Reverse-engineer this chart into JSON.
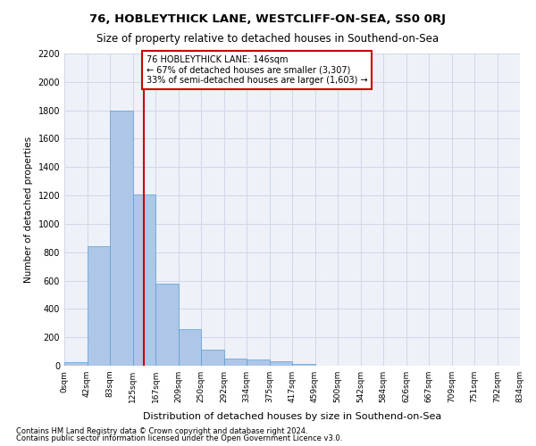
{
  "title_line1": "76, HOBLEYTHICK LANE, WESTCLIFF-ON-SEA, SS0 0RJ",
  "title_line2": "Size of property relative to detached houses in Southend-on-Sea",
  "xlabel": "Distribution of detached houses by size in Southend-on-Sea",
  "ylabel": "Number of detached properties",
  "footnote1": "Contains HM Land Registry data © Crown copyright and database right 2024.",
  "footnote2": "Contains public sector information licensed under the Open Government Licence v3.0.",
  "bar_values": [
    25,
    840,
    1800,
    1210,
    580,
    260,
    115,
    50,
    45,
    30,
    15,
    0,
    0,
    0,
    0,
    0,
    0,
    0,
    0,
    0
  ],
  "bar_labels": [
    "0sqm",
    "42sqm",
    "83sqm",
    "125sqm",
    "167sqm",
    "209sqm",
    "250sqm",
    "292sqm",
    "334sqm",
    "375sqm",
    "417sqm",
    "459sqm",
    "500sqm",
    "542sqm",
    "584sqm",
    "626sqm",
    "667sqm",
    "709sqm",
    "751sqm",
    "792sqm",
    "834sqm"
  ],
  "bar_color": "#aec6e8",
  "bar_edge_color": "#5a9fd4",
  "grid_color": "#d0d8e8",
  "background_color": "#eef2f8",
  "property_line_x": 146,
  "property_line_color": "#cc0000",
  "annotation_text": "76 HOBLEYTHICK LANE: 146sqm\n← 67% of detached houses are smaller (3,307)\n33% of semi-detached houses are larger (1,603) →",
  "annotation_box_color": "#ffffff",
  "annotation_box_edge": "#cc0000",
  "ylim": [
    0,
    2200
  ],
  "bin_width": 42
}
